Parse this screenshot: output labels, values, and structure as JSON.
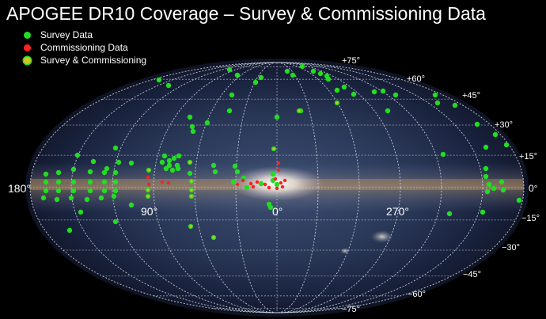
{
  "title": "APOGEE DR10 Coverage – Survey & Commissioning Data",
  "legend": [
    {
      "label": "Survey Data",
      "color": "#22dd22",
      "ring": ""
    },
    {
      "label": "Commissioning Data",
      "color": "#ff2020",
      "ring": ""
    },
    {
      "label": "Survey & Commissioning",
      "color": "#d4c020",
      "ring": "#22dd22"
    }
  ],
  "lat_labels": [
    "+75°",
    "+60°",
    "+45°",
    "+30°",
    "+15°",
    "0°",
    "−15°",
    "−30°",
    "−45°",
    "−60°",
    "−75°"
  ],
  "lon_labels": [
    "180°",
    "90°",
    "0°",
    "270°"
  ],
  "colors": {
    "survey": "#22dd22",
    "commissioning": "#ff2020",
    "both_fill": "#d4c020",
    "both_ring": "#22dd22"
  },
  "fields": {
    "survey": [
      [
        201,
        101
      ],
      [
        213,
        108
      ],
      [
        290,
        88
      ],
      [
        300,
        95
      ],
      [
        323,
        104
      ],
      [
        330,
        98
      ],
      [
        363,
        90
      ],
      [
        370,
        95
      ],
      [
        382,
        84
      ],
      [
        396,
        90
      ],
      [
        405,
        93
      ],
      [
        413,
        96
      ],
      [
        415,
        100
      ],
      [
        426,
        114
      ],
      [
        435,
        110
      ],
      [
        447,
        119
      ],
      [
        473,
        116
      ],
      [
        484,
        115
      ],
      [
        490,
        140
      ],
      [
        500,
        120
      ],
      [
        550,
        120
      ],
      [
        553,
        130
      ],
      [
        575,
        133
      ],
      [
        603,
        157
      ],
      [
        293,
        120
      ],
      [
        350,
        148
      ],
      [
        240,
        148
      ],
      [
        243,
        160
      ],
      [
        262,
        155
      ],
      [
        244,
        166
      ],
      [
        290,
        140
      ],
      [
        380,
        140
      ],
      [
        146,
        187
      ],
      [
        98,
        196
      ],
      [
        118,
        204
      ],
      [
        135,
        213
      ],
      [
        150,
        205
      ],
      [
        166,
        206
      ],
      [
        58,
        220
      ],
      [
        74,
        218
      ],
      [
        93,
        214
      ],
      [
        114,
        217
      ],
      [
        132,
        218
      ],
      [
        146,
        218
      ],
      [
        58,
        230
      ],
      [
        74,
        230
      ],
      [
        93,
        230
      ],
      [
        114,
        230
      ],
      [
        132,
        230
      ],
      [
        146,
        230
      ],
      [
        58,
        241
      ],
      [
        74,
        241
      ],
      [
        93,
        241
      ],
      [
        114,
        241
      ],
      [
        132,
        241
      ],
      [
        146,
        241
      ],
      [
        55,
        250
      ],
      [
        72,
        252
      ],
      [
        90,
        250
      ],
      [
        110,
        252
      ],
      [
        128,
        250
      ],
      [
        144,
        248
      ],
      [
        102,
        268
      ],
      [
        88,
        291
      ],
      [
        146,
        280
      ],
      [
        166,
        259
      ],
      [
        208,
        197
      ],
      [
        214,
        203
      ],
      [
        220,
        200
      ],
      [
        226,
        197
      ],
      [
        205,
        205
      ],
      [
        214,
        209
      ],
      [
        224,
        209
      ],
      [
        210,
        213
      ],
      [
        218,
        215
      ],
      [
        225,
        213
      ],
      [
        240,
        219
      ],
      [
        270,
        209
      ],
      [
        272,
        217
      ],
      [
        297,
        210
      ],
      [
        300,
        217
      ],
      [
        308,
        225
      ],
      [
        295,
        230
      ],
      [
        312,
        237
      ],
      [
        330,
        232
      ],
      [
        345,
        220
      ],
      [
        345,
        228
      ],
      [
        350,
        233
      ],
      [
        340,
        258
      ],
      [
        342,
        262
      ],
      [
        560,
        195
      ],
      [
        614,
        186
      ],
      [
        626,
        170
      ],
      [
        640,
        183
      ],
      [
        614,
        213
      ],
      [
        614,
        223
      ],
      [
        618,
        233
      ],
      [
        616,
        242
      ],
      [
        624,
        238
      ],
      [
        634,
        230
      ],
      [
        636,
        240
      ],
      [
        610,
        268
      ],
      [
        656,
        253
      ],
      [
        568,
        270
      ]
    ],
    "commissioning": [
      [
        187,
        224
      ],
      [
        188,
        233
      ],
      [
        205,
        230
      ],
      [
        213,
        231
      ],
      [
        300,
        233
      ],
      [
        307,
        228
      ],
      [
        317,
        232
      ],
      [
        325,
        230
      ],
      [
        320,
        236
      ],
      [
        335,
        233
      ],
      [
        340,
        237
      ],
      [
        350,
        238
      ],
      [
        355,
        231
      ],
      [
        348,
        226
      ],
      [
        352,
        206
      ],
      [
        352,
        215
      ],
      [
        360,
        228
      ],
      [
        357,
        236
      ]
    ],
    "both": [
      [
        346,
        188
      ],
      [
        378,
        140
      ],
      [
        426,
        130
      ],
      [
        242,
        229
      ],
      [
        242,
        240
      ],
      [
        242,
        248
      ],
      [
        187,
        240
      ],
      [
        187,
        248
      ],
      [
        270,
        300
      ],
      [
        241,
        286
      ],
      [
        188,
        215
      ],
      [
        240,
        205
      ]
    ]
  }
}
